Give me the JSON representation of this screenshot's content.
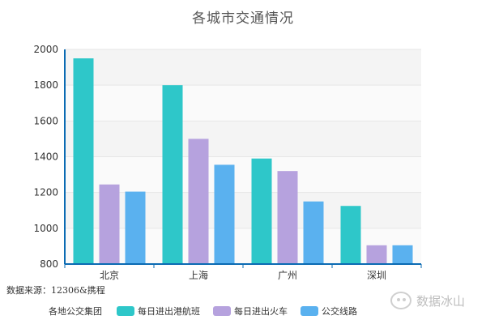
{
  "chart_data": {
    "type": "bar",
    "title": "各城市交通情况",
    "categories": [
      "北京",
      "上海",
      "广州",
      "深圳"
    ],
    "series": [
      {
        "name": "每日进出港航班",
        "values": [
          1950,
          1800,
          1390,
          1125
        ],
        "color": "#2ec7c9"
      },
      {
        "name": "每日进出火车",
        "values": [
          1245,
          1500,
          1320,
          905
        ],
        "color": "#b6a2de"
      },
      {
        "name": "公交线路",
        "values": [
          1205,
          1355,
          1150,
          905
        ],
        "color": "#5ab1ef"
      }
    ],
    "ylim": [
      800,
      2000
    ],
    "yticks": [
      800,
      1000,
      1200,
      1400,
      1600,
      1800,
      2000
    ],
    "grid": true,
    "legend_position": "bottom",
    "legend_title": "各地公交集团",
    "xlabel": "",
    "ylabel": ""
  },
  "source_text": "数据来源：12306&携程",
  "watermark_text": "数据冰山"
}
